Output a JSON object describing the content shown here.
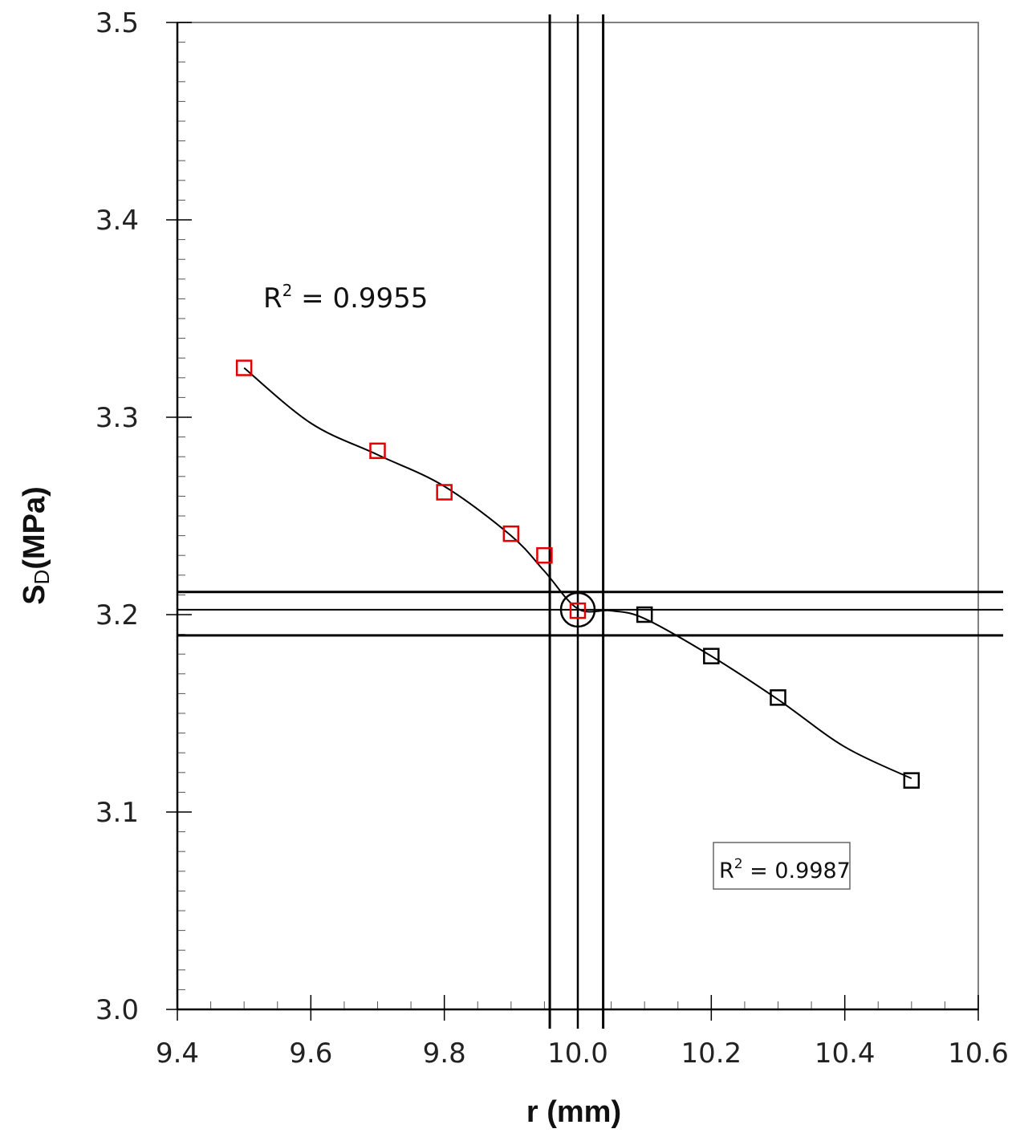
{
  "chart_data": {
    "type": "scatter",
    "xlabel": "r (mm)",
    "ylabel_main": "S",
    "ylabel_sub": "D",
    "ylabel_unit": "(MPa)",
    "xlim": [
      9.4,
      10.6
    ],
    "ylim": [
      3.0,
      3.5
    ],
    "xticks": [
      9.4,
      9.6,
      9.8,
      10.0,
      10.2,
      10.4,
      10.6
    ],
    "xtick_labels": [
      "9.4",
      "9.6",
      "9.8",
      "10.0",
      "10.2",
      "10.4",
      "10.6"
    ],
    "yticks": [
      3.0,
      3.1,
      3.2,
      3.3,
      3.4,
      3.5
    ],
    "ytick_labels": [
      "3.0",
      "3.1",
      "3.2",
      "3.3",
      "3.4",
      "3.5"
    ],
    "grid": false,
    "series": [
      {
        "color": "#e00000",
        "marker": "square",
        "x": [
          9.5,
          9.7,
          9.8,
          9.9,
          9.95,
          10.0
        ],
        "y": [
          3.325,
          3.283,
          3.262,
          3.241,
          3.23,
          3.202
        ]
      },
      {
        "color": "#000000",
        "marker": "square",
        "x": [
          10.1,
          10.2,
          10.3,
          10.5
        ],
        "y": [
          3.2,
          3.179,
          3.158,
          3.116
        ]
      }
    ],
    "fit_curve": {
      "color": "#000000",
      "x": [
        9.5,
        9.6,
        9.7,
        9.8,
        9.9,
        9.95,
        10.0,
        10.05,
        10.1,
        10.2,
        10.3,
        10.4,
        10.5
      ],
      "y": [
        3.325,
        3.297,
        3.281,
        3.265,
        3.24,
        3.222,
        3.203,
        3.202,
        3.198,
        3.179,
        3.157,
        3.133,
        3.117
      ]
    },
    "vertical_lines": [
      9.958,
      10.0,
      10.038
    ],
    "horizontal_lines": [
      3.2115,
      3.2025,
      3.1895
    ],
    "highlight_point": {
      "x": 10.0,
      "y": 3.2025
    },
    "annotations": [
      {
        "base": "R",
        "sup": "2",
        "rest": " = 0.9955",
        "boxed": false
      },
      {
        "base": "R",
        "sup": "2",
        "rest": " = 0.9987",
        "boxed": true
      }
    ]
  }
}
